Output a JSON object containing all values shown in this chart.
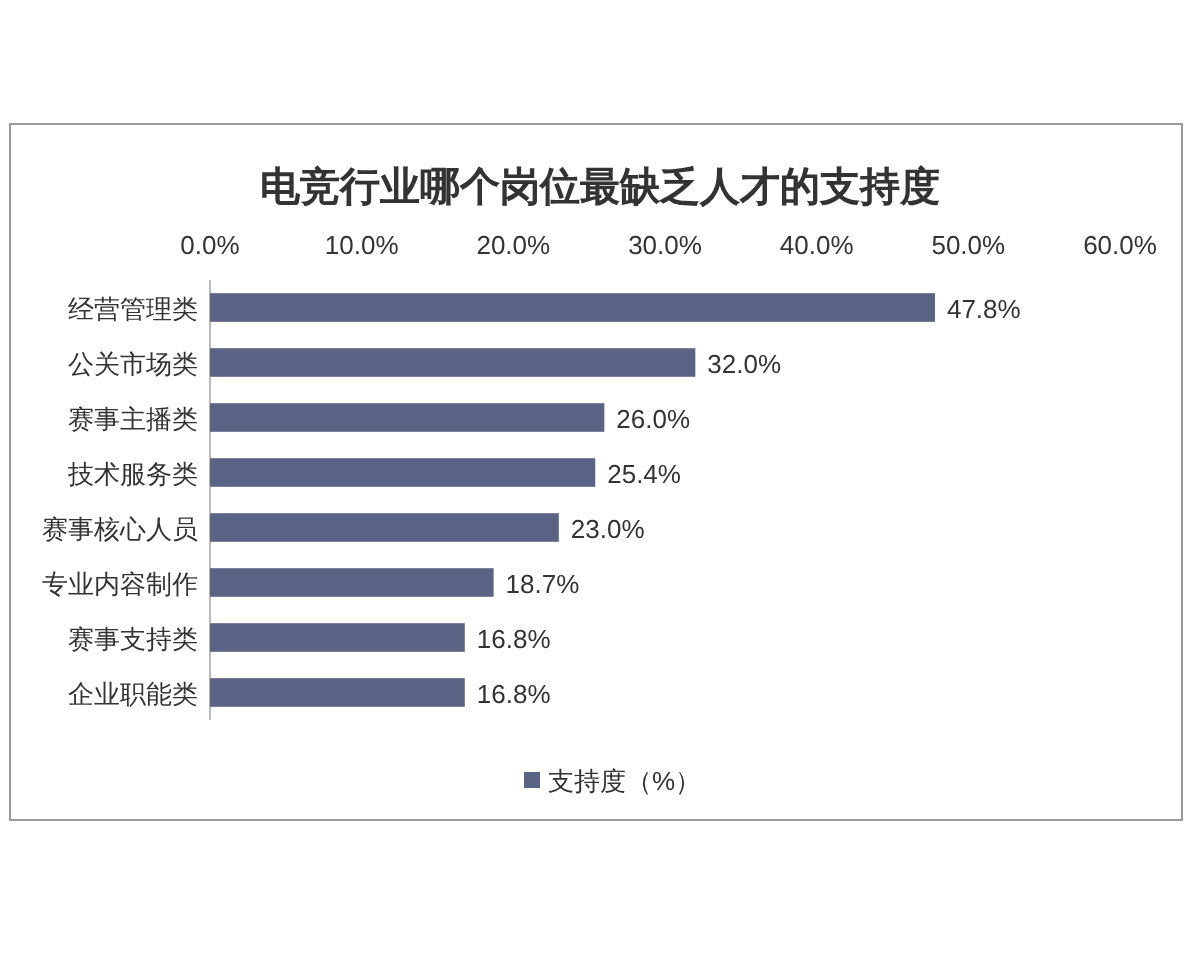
{
  "chart_data": {
    "type": "bar",
    "orientation": "horizontal",
    "title": "电竞行业哪个岗位最缺乏人才的支持度",
    "categories": [
      "经营管理类",
      "公关市场类",
      "赛事主播类",
      "技术服务类",
      "赛事核心人员",
      "专业内容制作",
      "赛事支持类",
      "企业职能类"
    ],
    "series": [
      {
        "name": "支持度（%）",
        "color": "#5b6385",
        "values": [
          47.8,
          32.0,
          26.0,
          25.4,
          23.0,
          18.7,
          16.8,
          16.8
        ],
        "value_labels": [
          "47.8%",
          "32.0%",
          "26.0%",
          "25.4%",
          "23.0%",
          "18.7%",
          "16.8%",
          "16.8%"
        ]
      }
    ],
    "xlim": [
      0,
      60
    ],
    "xticks": [
      {
        "value": 0,
        "label": "0.0%"
      },
      {
        "value": 10,
        "label": "10.0%"
      },
      {
        "value": 20,
        "label": "20.0%"
      },
      {
        "value": 30,
        "label": "30.0%"
      },
      {
        "value": 40,
        "label": "40.0%"
      },
      {
        "value": 50,
        "label": "50.0%"
      },
      {
        "value": 60,
        "label": "60.0%"
      }
    ],
    "legend": "bottom",
    "grid": false
  }
}
